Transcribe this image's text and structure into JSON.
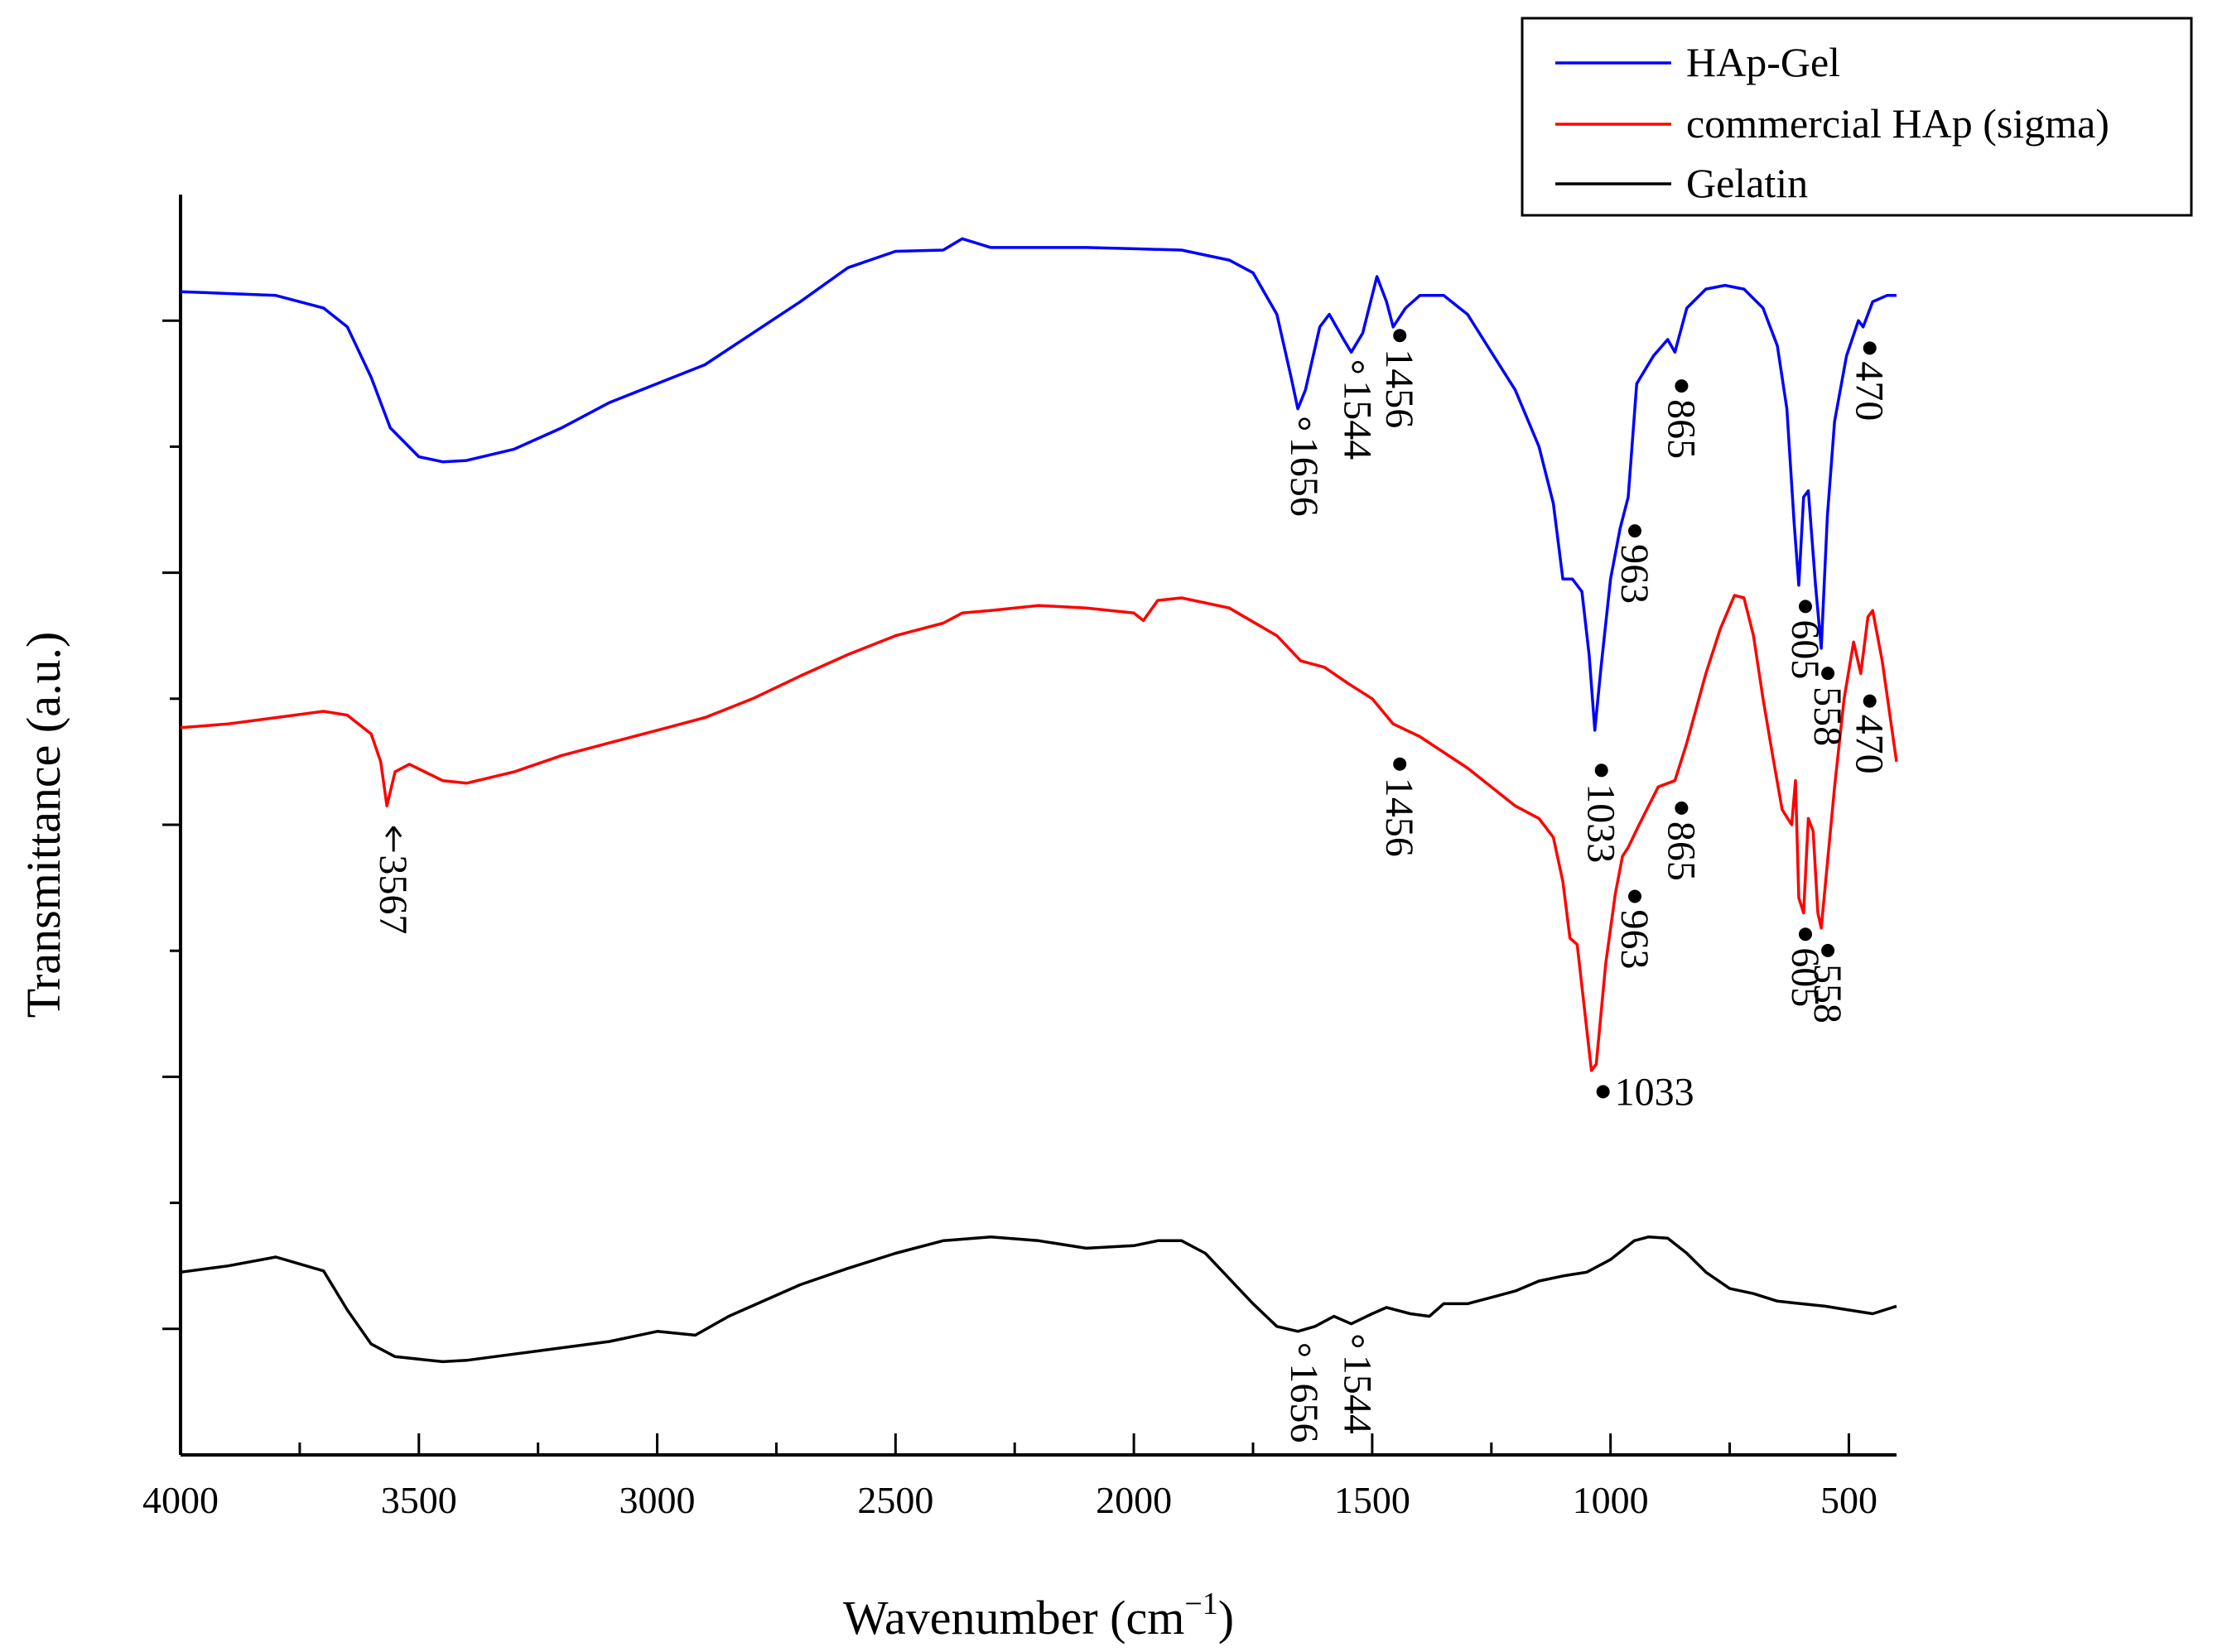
{
  "chart_data": {
    "type": "line",
    "title": "",
    "xlabel": "Wavenumber (cm",
    "xlabel_sup": "−1",
    "xlabel_close": ")",
    "ylabel": "Transmittance (a.u.)",
    "xlim": [
      4000,
      400
    ],
    "ylim": [
      0,
      10
    ],
    "xticks": [
      4000,
      3500,
      3000,
      2500,
      2000,
      1500,
      1000,
      500
    ],
    "xtick_labels": [
      "4000",
      "3500",
      "3000",
      "2500",
      "2000",
      "1500",
      "1000",
      "500"
    ],
    "legend_position": "top-right",
    "series": [
      {
        "name": "HAp-Gel",
        "color": "#0000ff",
        "points": [
          [
            4000,
            9.23
          ],
          [
            3800,
            9.2
          ],
          [
            3700,
            9.1
          ],
          [
            3650,
            8.95
          ],
          [
            3600,
            8.55
          ],
          [
            3560,
            8.15
          ],
          [
            3500,
            7.92
          ],
          [
            3450,
            7.88
          ],
          [
            3400,
            7.89
          ],
          [
            3300,
            7.98
          ],
          [
            3200,
            8.15
          ],
          [
            3100,
            8.35
          ],
          [
            3000,
            8.5
          ],
          [
            2900,
            8.65
          ],
          [
            2800,
            8.9
          ],
          [
            2700,
            9.15
          ],
          [
            2600,
            9.42
          ],
          [
            2500,
            9.55
          ],
          [
            2400,
            9.56
          ],
          [
            2360,
            9.65
          ],
          [
            2300,
            9.58
          ],
          [
            2100,
            9.58
          ],
          [
            2000,
            9.57
          ],
          [
            1900,
            9.56
          ],
          [
            1800,
            9.48
          ],
          [
            1750,
            9.38
          ],
          [
            1700,
            9.05
          ],
          [
            1670,
            8.55
          ],
          [
            1656,
            8.3
          ],
          [
            1640,
            8.45
          ],
          [
            1610,
            8.95
          ],
          [
            1590,
            9.05
          ],
          [
            1560,
            8.85
          ],
          [
            1544,
            8.75
          ],
          [
            1520,
            8.9
          ],
          [
            1490,
            9.35
          ],
          [
            1470,
            9.15
          ],
          [
            1456,
            8.95
          ],
          [
            1430,
            9.1
          ],
          [
            1400,
            9.2
          ],
          [
            1350,
            9.2
          ],
          [
            1300,
            9.05
          ],
          [
            1250,
            8.75
          ],
          [
            1200,
            8.45
          ],
          [
            1150,
            8.0
          ],
          [
            1120,
            7.55
          ],
          [
            1100,
            6.95
          ],
          [
            1080,
            6.95
          ],
          [
            1060,
            6.85
          ],
          [
            1045,
            6.35
          ],
          [
            1033,
            5.75
          ],
          [
            1020,
            6.25
          ],
          [
            1000,
            6.95
          ],
          [
            980,
            7.35
          ],
          [
            963,
            7.6
          ],
          [
            945,
            8.5
          ],
          [
            910,
            8.72
          ],
          [
            880,
            8.85
          ],
          [
            865,
            8.75
          ],
          [
            840,
            9.1
          ],
          [
            800,
            9.25
          ],
          [
            760,
            9.28
          ],
          [
            720,
            9.25
          ],
          [
            680,
            9.1
          ],
          [
            650,
            8.8
          ],
          [
            630,
            8.3
          ],
          [
            615,
            7.4
          ],
          [
            605,
            6.9
          ],
          [
            595,
            7.6
          ],
          [
            585,
            7.65
          ],
          [
            570,
            6.9
          ],
          [
            558,
            6.4
          ],
          [
            545,
            7.45
          ],
          [
            530,
            8.2
          ],
          [
            505,
            8.72
          ],
          [
            480,
            9.0
          ],
          [
            470,
            8.95
          ],
          [
            450,
            9.15
          ],
          [
            420,
            9.2
          ],
          [
            400,
            9.2
          ]
        ]
      },
      {
        "name": "commercial HAp (sigma)",
        "color": "#ff0000",
        "points": [
          [
            4000,
            5.77
          ],
          [
            3900,
            5.8
          ],
          [
            3800,
            5.85
          ],
          [
            3700,
            5.9
          ],
          [
            3650,
            5.87
          ],
          [
            3600,
            5.72
          ],
          [
            3580,
            5.5
          ],
          [
            3567,
            5.15
          ],
          [
            3550,
            5.42
          ],
          [
            3520,
            5.48
          ],
          [
            3450,
            5.35
          ],
          [
            3400,
            5.33
          ],
          [
            3300,
            5.42
          ],
          [
            3200,
            5.55
          ],
          [
            3100,
            5.65
          ],
          [
            3000,
            5.75
          ],
          [
            2900,
            5.85
          ],
          [
            2800,
            6.0
          ],
          [
            2700,
            6.18
          ],
          [
            2600,
            6.35
          ],
          [
            2500,
            6.5
          ],
          [
            2400,
            6.6
          ],
          [
            2360,
            6.68
          ],
          [
            2300,
            6.7
          ],
          [
            2200,
            6.74
          ],
          [
            2100,
            6.72
          ],
          [
            2000,
            6.68
          ],
          [
            1980,
            6.62
          ],
          [
            1950,
            6.78
          ],
          [
            1900,
            6.8
          ],
          [
            1800,
            6.72
          ],
          [
            1700,
            6.5
          ],
          [
            1650,
            6.3
          ],
          [
            1600,
            6.25
          ],
          [
            1550,
            6.12
          ],
          [
            1500,
            6.0
          ],
          [
            1456,
            5.8
          ],
          [
            1400,
            5.7
          ],
          [
            1300,
            5.45
          ],
          [
            1200,
            5.15
          ],
          [
            1150,
            5.05
          ],
          [
            1120,
            4.9
          ],
          [
            1100,
            4.55
          ],
          [
            1085,
            4.1
          ],
          [
            1070,
            4.05
          ],
          [
            1055,
            3.55
          ],
          [
            1040,
            3.05
          ],
          [
            1030,
            3.1
          ],
          [
            1010,
            3.9
          ],
          [
            990,
            4.45
          ],
          [
            975,
            4.75
          ],
          [
            963,
            4.82
          ],
          [
            940,
            5.0
          ],
          [
            900,
            5.3
          ],
          [
            865,
            5.35
          ],
          [
            840,
            5.65
          ],
          [
            800,
            6.2
          ],
          [
            770,
            6.55
          ],
          [
            740,
            6.82
          ],
          [
            720,
            6.8
          ],
          [
            700,
            6.5
          ],
          [
            680,
            6.0
          ],
          [
            660,
            5.55
          ],
          [
            640,
            5.12
          ],
          [
            620,
            5.0
          ],
          [
            612,
            5.35
          ],
          [
            605,
            4.42
          ],
          [
            595,
            4.3
          ],
          [
            585,
            5.05
          ],
          [
            575,
            4.95
          ],
          [
            565,
            4.3
          ],
          [
            558,
            4.18
          ],
          [
            550,
            4.5
          ],
          [
            530,
            5.3
          ],
          [
            510,
            6.0
          ],
          [
            490,
            6.45
          ],
          [
            475,
            6.2
          ],
          [
            460,
            6.65
          ],
          [
            450,
            6.7
          ],
          [
            430,
            6.3
          ],
          [
            400,
            5.5
          ]
        ]
      },
      {
        "name": "Gelatin",
        "color": "#000000",
        "points": [
          [
            4000,
            1.45
          ],
          [
            3900,
            1.5
          ],
          [
            3800,
            1.57
          ],
          [
            3700,
            1.46
          ],
          [
            3650,
            1.15
          ],
          [
            3600,
            0.88
          ],
          [
            3550,
            0.78
          ],
          [
            3450,
            0.74
          ],
          [
            3400,
            0.75
          ],
          [
            3300,
            0.8
          ],
          [
            3200,
            0.85
          ],
          [
            3100,
            0.9
          ],
          [
            3000,
            0.98
          ],
          [
            2920,
            0.95
          ],
          [
            2850,
            1.1
          ],
          [
            2700,
            1.35
          ],
          [
            2600,
            1.48
          ],
          [
            2500,
            1.6
          ],
          [
            2400,
            1.7
          ],
          [
            2300,
            1.73
          ],
          [
            2200,
            1.7
          ],
          [
            2100,
            1.64
          ],
          [
            2000,
            1.66
          ],
          [
            1950,
            1.7
          ],
          [
            1900,
            1.7
          ],
          [
            1850,
            1.6
          ],
          [
            1800,
            1.4
          ],
          [
            1750,
            1.2
          ],
          [
            1700,
            1.02
          ],
          [
            1656,
            0.98
          ],
          [
            1620,
            1.02
          ],
          [
            1580,
            1.1
          ],
          [
            1544,
            1.04
          ],
          [
            1500,
            1.12
          ],
          [
            1470,
            1.17
          ],
          [
            1420,
            1.12
          ],
          [
            1380,
            1.1
          ],
          [
            1350,
            1.2
          ],
          [
            1300,
            1.2
          ],
          [
            1250,
            1.25
          ],
          [
            1200,
            1.3
          ],
          [
            1150,
            1.38
          ],
          [
            1100,
            1.42
          ],
          [
            1050,
            1.45
          ],
          [
            1000,
            1.55
          ],
          [
            950,
            1.7
          ],
          [
            920,
            1.73
          ],
          [
            880,
            1.72
          ],
          [
            840,
            1.6
          ],
          [
            800,
            1.45
          ],
          [
            750,
            1.32
          ],
          [
            700,
            1.28
          ],
          [
            650,
            1.22
          ],
          [
            600,
            1.2
          ],
          [
            550,
            1.18
          ],
          [
            500,
            1.15
          ],
          [
            450,
            1.12
          ],
          [
            400,
            1.18
          ]
        ]
      }
    ],
    "annotations": [
      {
        "label": "1656",
        "marker": "open",
        "orientation": "vertical",
        "series": "HAp-Gel",
        "x": 1656,
        "y": 8.3
      },
      {
        "label": "1544",
        "marker": "open",
        "orientation": "vertical",
        "series": "HAp-Gel",
        "x": 1544,
        "y": 8.75
      },
      {
        "label": "1456",
        "marker": "filled",
        "orientation": "vertical",
        "series": "HAp-Gel",
        "x": 1456,
        "y": 9.0
      },
      {
        "label": "1033",
        "marker": "filled",
        "orientation": "vertical",
        "series": "HAp-Gel",
        "x": 1033,
        "y": 5.55
      },
      {
        "label": "963",
        "marker": "filled",
        "orientation": "vertical",
        "series": "HAp-Gel",
        "x": 963,
        "y": 7.45
      },
      {
        "label": "865",
        "marker": "filled",
        "orientation": "vertical",
        "series": "HAp-Gel",
        "x": 865,
        "y": 8.6
      },
      {
        "label": "605",
        "marker": "filled",
        "orientation": "vertical",
        "series": "HAp-Gel",
        "x": 605,
        "y": 6.85
      },
      {
        "label": "558",
        "marker": "filled",
        "orientation": "vertical",
        "series": "HAp-Gel",
        "x": 558,
        "y": 6.32
      },
      {
        "label": "470",
        "marker": "filled",
        "orientation": "vertical",
        "series": "HAp-Gel",
        "x": 470,
        "y": 8.9
      },
      {
        "label": "3567",
        "marker": "arrow",
        "orientation": "vertical",
        "series": "commercial HAp (sigma)",
        "x": 3567,
        "y": 5.05
      },
      {
        "label": "1456",
        "marker": "filled",
        "orientation": "vertical",
        "series": "commercial HAp (sigma)",
        "x": 1456,
        "y": 5.6
      },
      {
        "label": "1033",
        "marker": "filled",
        "orientation": "horizontal",
        "series": "commercial HAp (sigma)",
        "x": 1033,
        "y": 3.0
      },
      {
        "label": "963",
        "marker": "filled",
        "orientation": "vertical",
        "series": "commercial HAp (sigma)",
        "x": 963,
        "y": 4.55
      },
      {
        "label": "865",
        "marker": "filled",
        "orientation": "vertical",
        "series": "commercial HAp (sigma)",
        "x": 865,
        "y": 5.25
      },
      {
        "label": "605",
        "marker": "filled",
        "orientation": "vertical",
        "series": "commercial HAp (sigma)",
        "x": 605,
        "y": 4.25
      },
      {
        "label": "558",
        "marker": "filled",
        "orientation": "vertical",
        "series": "commercial HAp (sigma)",
        "x": 558,
        "y": 4.12
      },
      {
        "label": "470",
        "marker": "filled",
        "orientation": "vertical",
        "series": "commercial HAp (sigma)",
        "x": 470,
        "y": 6.1
      },
      {
        "label": "1656",
        "marker": "open",
        "orientation": "vertical",
        "series": "Gelatin",
        "x": 1656,
        "y": 0.95
      },
      {
        "label": "1544",
        "marker": "open",
        "orientation": "vertical",
        "series": "Gelatin",
        "x": 1544,
        "y": 1.02
      }
    ]
  }
}
